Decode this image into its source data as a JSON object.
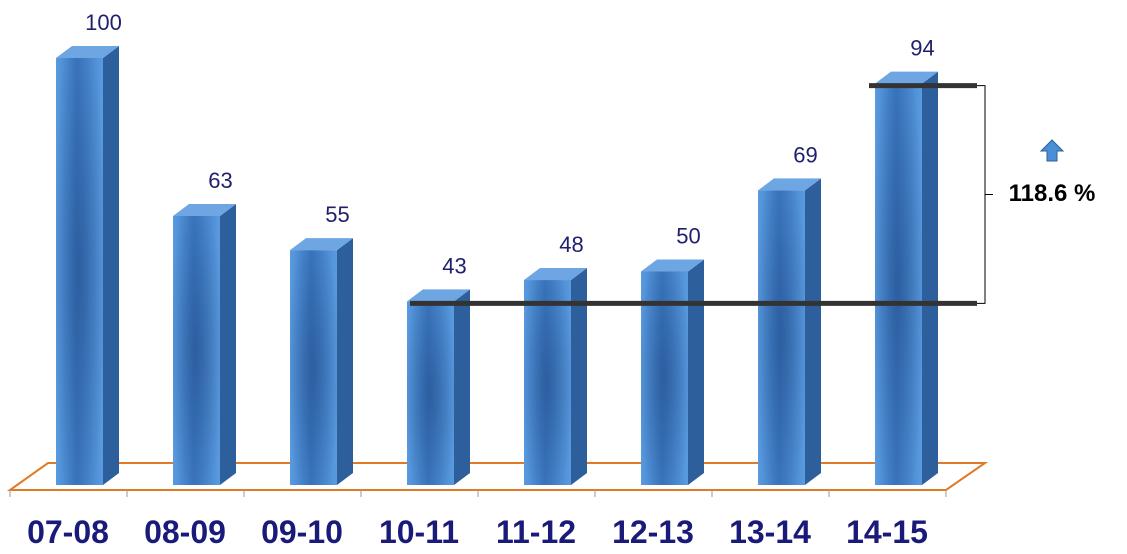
{
  "chart_data": {
    "type": "bar",
    "categories": [
      "07-08",
      "08-09",
      "09-10",
      "10-11",
      "11-12",
      "12-13",
      "13-14",
      "14-15"
    ],
    "values": [
      100,
      63,
      55,
      43,
      48,
      50,
      69,
      94
    ],
    "title": "",
    "xlabel": "",
    "ylabel": "",
    "ylim": [
      0,
      100
    ],
    "grid": false,
    "annotation": {
      "from_category": "10-11",
      "to_category": "14-15",
      "change_label": "118.6 %",
      "direction": "up"
    }
  },
  "colors": {
    "bar_front": "#4a8fd6",
    "bar_side": "#2c5f9c",
    "bar_top": "#6ea6e3",
    "floor_line": "#e07a26",
    "ref_line": "#333333",
    "value_text": "#1f1f6e",
    "category_text": "#1a1a7a",
    "arrow": "#4a8fd6"
  }
}
